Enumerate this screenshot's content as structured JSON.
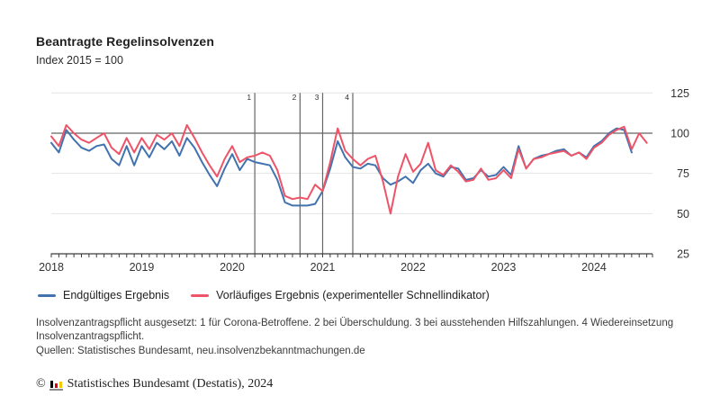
{
  "header": {
    "title": "Beantragte Regelinsolvenzen",
    "subtitle": "Index 2015 = 100"
  },
  "chart_data": {
    "type": "line",
    "title": "Beantragte Regelinsolvenzen",
    "subtitle": "Index 2015 = 100",
    "x_unit": "month",
    "months": [
      "2018-01",
      "2018-02",
      "2018-03",
      "2018-04",
      "2018-05",
      "2018-06",
      "2018-07",
      "2018-08",
      "2018-09",
      "2018-10",
      "2018-11",
      "2018-12",
      "2019-01",
      "2019-02",
      "2019-03",
      "2019-04",
      "2019-05",
      "2019-06",
      "2019-07",
      "2019-08",
      "2019-09",
      "2019-10",
      "2019-11",
      "2019-12",
      "2020-01",
      "2020-02",
      "2020-03",
      "2020-04",
      "2020-05",
      "2020-06",
      "2020-07",
      "2020-08",
      "2020-09",
      "2020-10",
      "2020-11",
      "2020-12",
      "2021-01",
      "2021-02",
      "2021-03",
      "2021-04",
      "2021-05",
      "2021-06",
      "2021-07",
      "2021-08",
      "2021-09",
      "2021-10",
      "2021-11",
      "2021-12",
      "2022-01",
      "2022-02",
      "2022-03",
      "2022-04",
      "2022-05",
      "2022-06",
      "2022-07",
      "2022-08",
      "2022-09",
      "2022-10",
      "2022-11",
      "2022-12",
      "2023-01",
      "2023-02",
      "2023-03",
      "2023-04",
      "2023-05",
      "2023-06",
      "2023-07",
      "2023-08",
      "2023-09",
      "2023-10",
      "2023-11",
      "2023-12",
      "2024-01",
      "2024-02",
      "2024-03",
      "2024-04",
      "2024-05",
      "2024-06",
      "2024-07",
      "2024-08"
    ],
    "series": [
      {
        "name": "Endgültiges Ergebnis",
        "color": "#4273ae",
        "values": [
          94,
          88,
          102,
          96,
          91,
          89,
          92,
          93,
          84,
          80,
          92,
          80,
          92,
          85,
          94,
          90,
          95,
          86,
          97,
          91,
          82,
          74,
          67,
          78,
          87,
          77,
          84,
          82,
          81,
          80,
          71,
          57,
          55,
          55,
          55,
          56,
          64,
          78,
          95,
          85,
          79,
          78,
          81,
          80,
          72,
          68,
          70,
          73,
          69,
          77,
          81,
          75,
          73,
          79,
          78,
          71,
          72,
          77,
          73,
          74,
          79,
          74,
          92,
          78,
          84,
          86,
          87,
          89,
          90,
          86,
          88,
          85,
          92,
          95,
          100,
          103,
          102,
          88,
          null,
          null
        ]
      },
      {
        "name": "Vorläufiges Ergebnis (experimenteller Schnellindikator)",
        "color": "#ee5468",
        "values": [
          98,
          92,
          105,
          100,
          96,
          94,
          97,
          100,
          91,
          87,
          97,
          88,
          97,
          90,
          99,
          96,
          100,
          92,
          105,
          97,
          88,
          80,
          73,
          84,
          92,
          82,
          85,
          86,
          88,
          86,
          77,
          61,
          59,
          60,
          59,
          68,
          64,
          82,
          103,
          89,
          84,
          80,
          84,
          86,
          70,
          50,
          73,
          87,
          76,
          81,
          94,
          77,
          74,
          80,
          76,
          70,
          71,
          78,
          71,
          72,
          77,
          72,
          90,
          78,
          84,
          85,
          87,
          88,
          89,
          86,
          88,
          84,
          91,
          94,
          99,
          102,
          104,
          90,
          100,
          94
        ]
      }
    ],
    "ylim": [
      25,
      125
    ],
    "yticks": [
      25,
      50,
      75,
      100,
      125
    ],
    "reference_line": 100,
    "grid": "horizontal",
    "legend_position": "bottom",
    "event_markers": [
      {
        "label": "1",
        "month_index": 27
      },
      {
        "label": "2",
        "month_index": 33
      },
      {
        "label": "3",
        "month_index": 36
      },
      {
        "label": "4",
        "month_index": 40
      }
    ]
  },
  "footnotes": {
    "note": "Insolvenzantragspflicht ausgesetzt: 1 für Corona-Betroffene. 2 bei Überschuldung. 3 bei ausstehenden Hilfszahlungen. 4 Wiedereinsetzung Insolvenzantragspflicht.",
    "sources": "Quellen: Statistisches Bundesamt, neu.insolvenzbekanntmachungen.de"
  },
  "attribution": {
    "copyright": "©",
    "text": "Statistisches Bundesamt (Destatis), 2024",
    "logo_colors": [
      "#000000",
      "#e1000f",
      "#f6c900"
    ]
  },
  "colors": {
    "grid": "#e4e4e4",
    "axis": "#3c3c3c",
    "event_line": "#666666"
  }
}
